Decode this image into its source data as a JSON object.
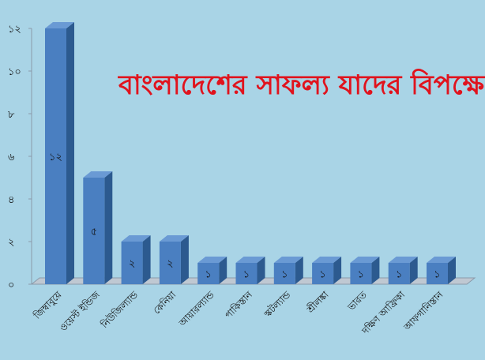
{
  "chart_data": {
    "type": "bar",
    "title": "বাংলাদেশের সাফল্য যাদের বিপক্ষে",
    "xlabel": "",
    "ylabel": "",
    "categories": [
      "জিম্বাবুয়ে",
      "ওয়েস্ট ইন্ডিজ",
      "নিউজিল্যান্ড",
      "কেনিয়া",
      "আয়ারল্যান্ড",
      "পাকিস্তান",
      "স্কটল্যান্ড",
      "শ্রীলঙ্কা",
      "ভারত",
      "দক্ষিণ আফ্রিকা",
      "আফগানিস্তান"
    ],
    "values": [
      12,
      5,
      2,
      2,
      1,
      1,
      1,
      1,
      1,
      1,
      1
    ],
    "value_labels": [
      "১২",
      "৫",
      "২",
      "২",
      "১",
      "১",
      "১",
      "১",
      "১",
      "১",
      "১"
    ],
    "y_ticks": [
      0,
      2,
      4,
      6,
      8,
      10,
      12
    ],
    "y_tick_labels": [
      "০",
      "২",
      "৪",
      "৬",
      "৮",
      "১০",
      "১২"
    ],
    "ylim": [
      0,
      12
    ],
    "grid": false,
    "colors": {
      "bar_front": "#4a7fc1",
      "bar_side": "#2c5a8f",
      "bar_top": "#6a9ad4",
      "floor": "#bfc8d2",
      "axis": "#8a9aaa",
      "title": "#e0131d",
      "text": "#111111"
    }
  }
}
